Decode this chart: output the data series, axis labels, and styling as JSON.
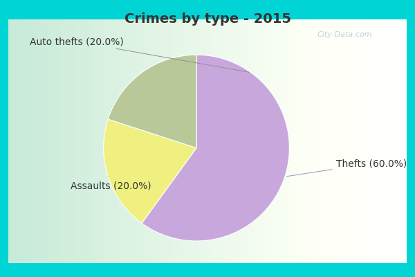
{
  "title": "Crimes by type - 2015",
  "slices": [
    {
      "label": "Thefts (60.0%)",
      "value": 60.0,
      "color": "#C8A8DC"
    },
    {
      "label": "Auto thefts (20.0%)",
      "value": 20.0,
      "color": "#F0F080"
    },
    {
      "label": "Assaults (20.0%)",
      "value": 20.0,
      "color": "#B8C898"
    }
  ],
  "bg_border_color": "#00D4D4",
  "bg_center_color": "#C8EAD8",
  "bg_right_color": "#E8F4EC",
  "title_fontsize": 14,
  "label_fontsize": 10,
  "title_color": "#333333",
  "label_color": "#333333",
  "watermark": "City-Data.com",
  "start_angle": 90,
  "counterclock": false
}
